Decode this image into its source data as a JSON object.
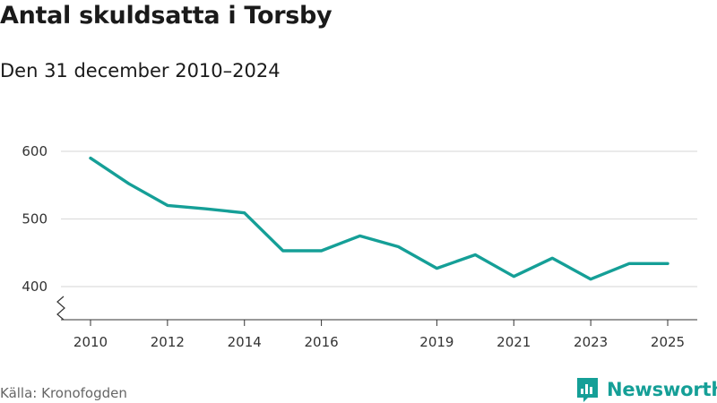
{
  "header": {
    "title": "Antal skuldsatta i Torsby",
    "subtitle": "Den 31 december 2010–2024"
  },
  "footer": {
    "source": "Källa: Kronofogden",
    "brand_name": "Newsworthy"
  },
  "colors": {
    "line": "#159f97",
    "grid": "#dddddd",
    "axis": "#333333",
    "brand": "#159f97"
  },
  "chart_data": {
    "type": "line",
    "title": "Antal skuldsatta i Torsby",
    "subtitle": "Den 31 december 2010–2024",
    "xlabel": "",
    "ylabel": "",
    "x": [
      2010,
      2011,
      2012,
      2013,
      2014,
      2015,
      2016,
      2017,
      2018,
      2019,
      2020,
      2021,
      2022,
      2023,
      2024,
      2025
    ],
    "series": [
      {
        "name": "Antal skuldsatta",
        "values": [
          590,
          552,
          520,
          515,
          509,
          453,
          453,
          475,
          459,
          427,
          447,
          415,
          442,
          411,
          434,
          434
        ]
      }
    ],
    "xticks": [
      "2010",
      "2012",
      "2014",
      "2016",
      "2019",
      "2021",
      "2023",
      "2025"
    ],
    "yticks": [
      "400",
      "500",
      "600"
    ],
    "ylim": [
      355,
      600
    ],
    "grid": true,
    "axis_break": true,
    "legend": "none"
  }
}
